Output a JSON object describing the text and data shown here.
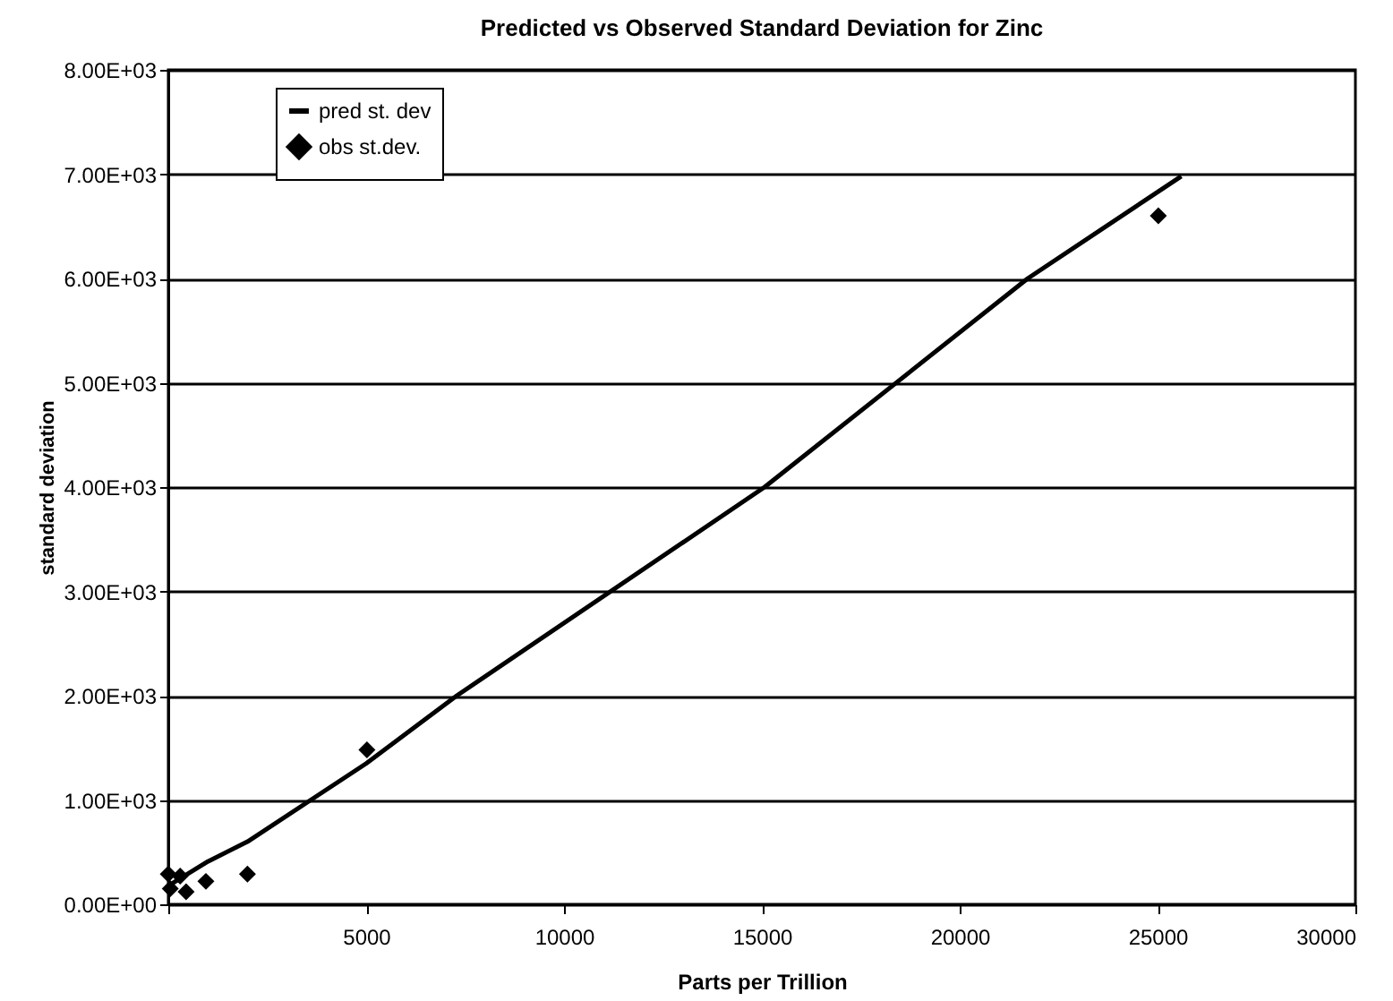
{
  "chart_data": {
    "type": "scatter",
    "title": "Predicted vs Observed Standard Deviation for Zinc",
    "xlabel": "Parts per Trillion",
    "ylabel": "standard deviation",
    "xlim": [
      0,
      30000
    ],
    "xticks": [
      {
        "value": 0,
        "label": null
      },
      5000,
      10000,
      15000,
      20000,
      25000,
      30000
    ],
    "ylim": [
      0,
      8000
    ],
    "yticks": [
      {
        "value": 0,
        "label": "0.00E+00"
      },
      {
        "value": 1000,
        "label": "1.00E+03"
      },
      {
        "value": 2000,
        "label": "2.00E+03"
      },
      {
        "value": 3000,
        "label": "3.00E+03"
      },
      {
        "value": 4000,
        "label": "4.00E+03"
      },
      {
        "value": 5000,
        "label": "5.00E+03"
      },
      {
        "value": 6000,
        "label": "6.00E+03"
      },
      {
        "value": 7000,
        "label": "7.00E+03"
      },
      {
        "value": 8000,
        "label": "8.00E+03"
      }
    ],
    "grid": "y",
    "legend": "top left",
    "series": [
      {
        "name": "pred st. dev",
        "type": "line",
        "color": "#000000",
        "marker": "none",
        "line_style": "solid",
        "x": [
          100,
          1000,
          2000,
          3600,
          5000,
          7290,
          15070,
          21720,
          25600
        ],
        "values": [
          200,
          410,
          600,
          1000,
          1350,
          2000,
          4000,
          6000,
          6980
        ]
      },
      {
        "name": "obs st.dev.",
        "color": "#000000",
        "marker": "diamond",
        "x": [
          0,
          300,
          50,
          450,
          950,
          2000,
          5020,
          25020
        ],
        "values": [
          290,
          270,
          150,
          120,
          220,
          290,
          1480,
          6600
        ]
      }
    ]
  }
}
